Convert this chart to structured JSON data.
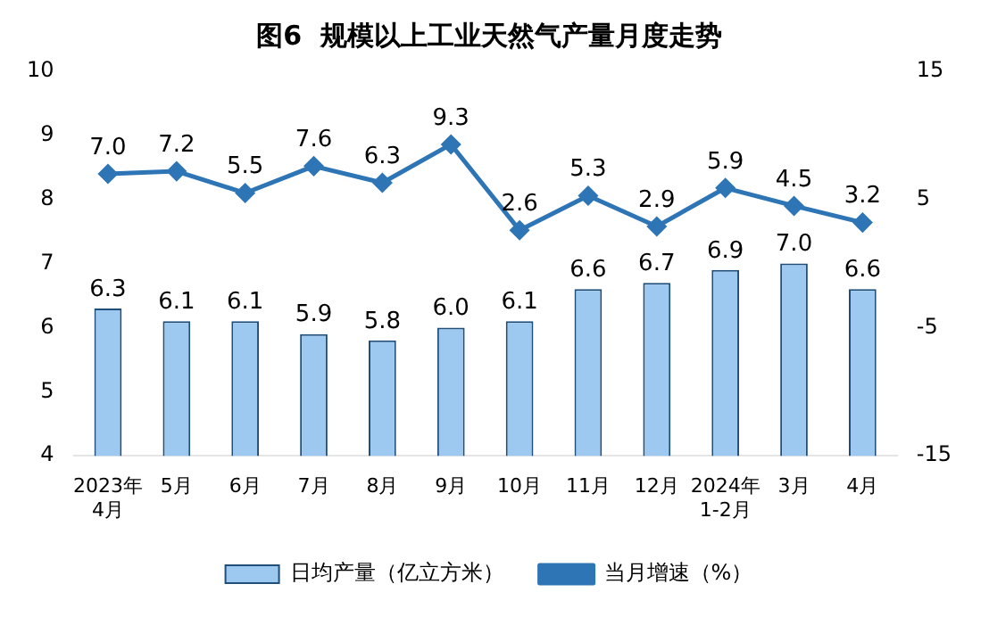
{
  "chart_data": {
    "type": "bar",
    "title": "图6  规模以上工业天然气产量月度走势",
    "categories": [
      "2023年\n4月",
      "5月",
      "6月",
      "7月",
      "8月",
      "9月",
      "10月",
      "11月",
      "12月",
      "2024年\n1-2月",
      "3月",
      "4月"
    ],
    "series": [
      {
        "name": "日均产量（亿立方米）",
        "color": "#9dc8f0",
        "values": [
          6.3,
          6.1,
          6.1,
          5.9,
          5.8,
          6.0,
          6.1,
          6.6,
          6.7,
          6.9,
          7.0,
          6.6
        ],
        "value_labels": [
          "6.3",
          "6.1",
          "6.1",
          "5.9",
          "5.8",
          "6.0",
          "6.1",
          "6.6",
          "6.7",
          "6.9",
          "7.0",
          "6.6"
        ]
      },
      {
        "name": "当月增速（%）",
        "type": "line",
        "axis": "y2",
        "color": "#2e75b6",
        "values": [
          7.0,
          7.2,
          5.5,
          7.6,
          6.3,
          9.3,
          2.6,
          5.3,
          2.9,
          5.9,
          4.5,
          3.2
        ],
        "value_labels": [
          "7.0",
          "7.2",
          "5.5",
          "7.6",
          "6.3",
          "9.3",
          "2.6",
          "5.3",
          "2.9",
          "5.9",
          "4.5",
          "3.2"
        ]
      }
    ],
    "ylim": [
      4,
      10
    ],
    "yticks": [
      4,
      5,
      6,
      7,
      8,
      9,
      10
    ],
    "y2lim": [
      -15,
      15
    ],
    "y2ticks": [
      -15,
      -5,
      5,
      15
    ],
    "grid": false,
    "legend": "bottom",
    "marker": "diamond",
    "line_style": "solid"
  }
}
